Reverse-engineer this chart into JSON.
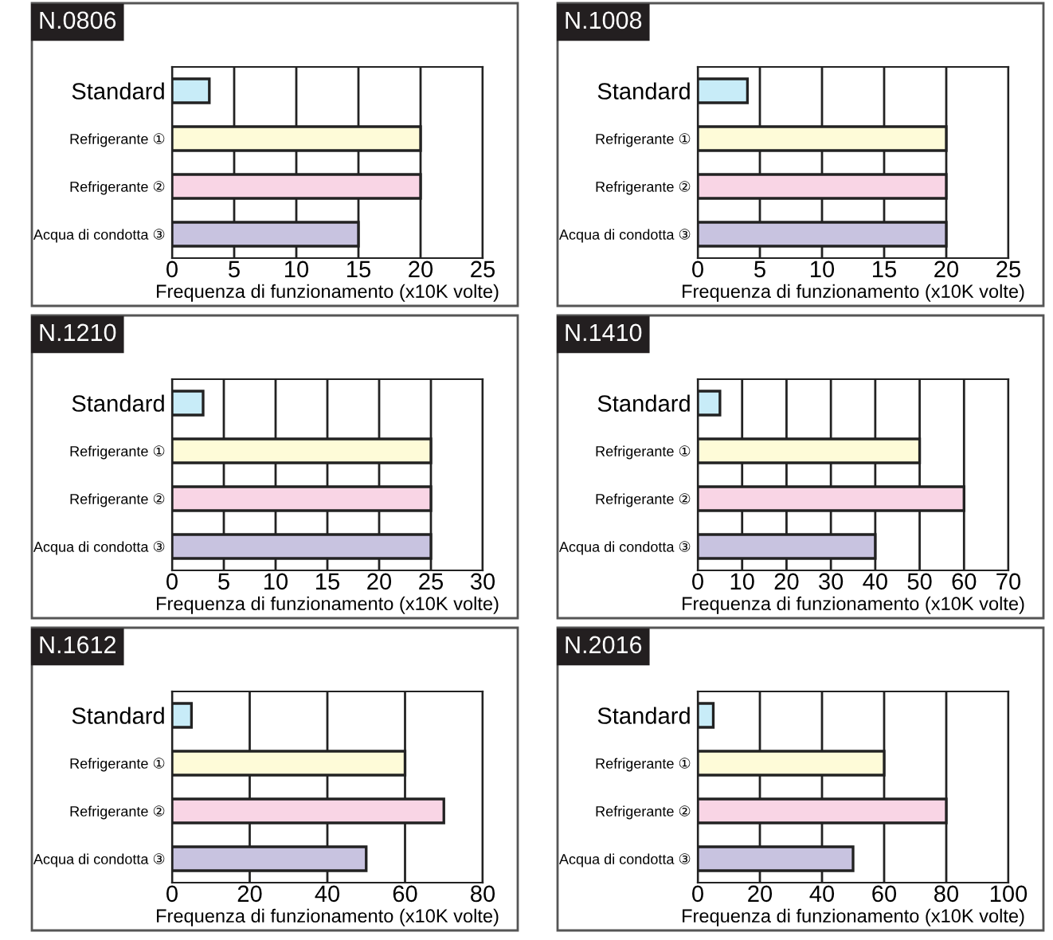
{
  "chart_data": [
    {
      "type": "bar",
      "orientation": "horizontal",
      "title": "N.0806",
      "categories": [
        "Standard",
        "Refrigerante ①",
        "Refrigerante ②",
        "Acqua di condotta ③"
      ],
      "values": [
        3,
        20,
        20,
        15
      ],
      "colors": [
        "#c8ecf8",
        "#fefbd8",
        "#f9d5e5",
        "#c8c3e0"
      ],
      "xlim": [
        0,
        25
      ],
      "xticks": [
        0,
        5,
        10,
        15,
        20,
        25
      ],
      "xlabel": "Frequenza di funzionamento (x10K volte)",
      "grid": "x"
    },
    {
      "type": "bar",
      "orientation": "horizontal",
      "title": "N.1008",
      "categories": [
        "Standard",
        "Refrigerante ①",
        "Refrigerante ②",
        "Acqua di condotta ③"
      ],
      "values": [
        4,
        20,
        20,
        20
      ],
      "colors": [
        "#c8ecf8",
        "#fefbd8",
        "#f9d5e5",
        "#c8c3e0"
      ],
      "xlim": [
        0,
        25
      ],
      "xticks": [
        0,
        5,
        10,
        15,
        20,
        25
      ],
      "xlabel": "Frequenza di funzionamento (x10K volte)",
      "grid": "x"
    },
    {
      "type": "bar",
      "orientation": "horizontal",
      "title": "N.1210",
      "categories": [
        "Standard",
        "Refrigerante ①",
        "Refrigerante ②",
        "Acqua di condotta ③"
      ],
      "values": [
        3,
        25,
        25,
        25
      ],
      "colors": [
        "#c8ecf8",
        "#fefbd8",
        "#f9d5e5",
        "#c8c3e0"
      ],
      "xlim": [
        0,
        30
      ],
      "xticks": [
        0,
        5,
        10,
        15,
        20,
        25,
        30
      ],
      "xlabel": "Frequenza di funzionamento (x10K volte)",
      "grid": "x"
    },
    {
      "type": "bar",
      "orientation": "horizontal",
      "title": "N.1410",
      "categories": [
        "Standard",
        "Refrigerante ①",
        "Refrigerante ②",
        "Acqua di condotta ③"
      ],
      "values": [
        5,
        50,
        60,
        40
      ],
      "colors": [
        "#c8ecf8",
        "#fefbd8",
        "#f9d5e5",
        "#c8c3e0"
      ],
      "xlim": [
        0,
        70
      ],
      "xticks": [
        0,
        10,
        20,
        30,
        40,
        50,
        60,
        70
      ],
      "xlabel": "Frequenza di funzionamento (x10K volte)",
      "grid": "x"
    },
    {
      "type": "bar",
      "orientation": "horizontal",
      "title": "N.1612",
      "categories": [
        "Standard",
        "Refrigerante ①",
        "Refrigerante ②",
        "Acqua di condotta ③"
      ],
      "values": [
        5,
        60,
        70,
        50
      ],
      "colors": [
        "#c8ecf8",
        "#fefbd8",
        "#f9d5e5",
        "#c8c3e0"
      ],
      "xlim": [
        0,
        80
      ],
      "xticks": [
        0,
        20,
        40,
        60,
        80
      ],
      "xlabel": "Frequenza di funzionamento (x10K volte)",
      "grid": "x"
    },
    {
      "type": "bar",
      "orientation": "horizontal",
      "title": "N.2016",
      "categories": [
        "Standard",
        "Refrigerante ①",
        "Refrigerante ②",
        "Acqua di condotta ③"
      ],
      "values": [
        5,
        60,
        80,
        50
      ],
      "colors": [
        "#c8ecf8",
        "#fefbd8",
        "#f9d5e5",
        "#c8c3e0"
      ],
      "xlim": [
        0,
        100
      ],
      "xticks": [
        0,
        20,
        40,
        60,
        80,
        100
      ],
      "xlabel": "Frequenza di funzionamento (x10K volte)",
      "grid": "x"
    }
  ]
}
